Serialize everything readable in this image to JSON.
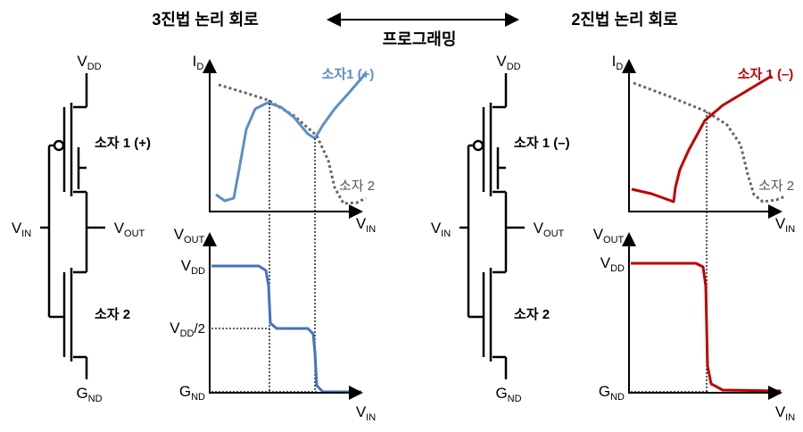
{
  "header": {
    "left_title": "3진법 논리 회로",
    "center": "프로그래밍",
    "right_title": "2진법 논리 회로"
  },
  "panels": [
    {
      "circuit": {
        "vdd": {
          "main": "V",
          "sub": "DD"
        },
        "gnd": {
          "main": "G",
          "sub": "ND"
        },
        "vin": {
          "main": "V",
          "sub": "IN"
        },
        "vout": {
          "main": "V",
          "sub": "OUT"
        },
        "device1": "소자 1 (+)",
        "device2": "소자 2"
      },
      "id_plot": {
        "y_label": {
          "main": "I",
          "sub": "D"
        },
        "x_label": {
          "main": "V",
          "sub": "IN"
        },
        "curve1_label": "소자1 (+)",
        "curve2_label": "소자 2"
      },
      "vtc_plot": {
        "y_label": {
          "main": "V",
          "sub": "OUT"
        },
        "x_label": {
          "main": "V",
          "sub": "IN"
        },
        "levels": [
          {
            "main": "V",
            "sub": "DD"
          },
          {
            "main": "V",
            "sub": "DD",
            "suffix": "/2"
          },
          {
            "main": "G",
            "sub": "ND"
          }
        ]
      }
    },
    {
      "circuit": {
        "vdd": {
          "main": "V",
          "sub": "DD"
        },
        "gnd": {
          "main": "G",
          "sub": "ND"
        },
        "vin": {
          "main": "V",
          "sub": "IN"
        },
        "vout": {
          "main": "V",
          "sub": "OUT"
        },
        "device1": "소자 1 (–)",
        "device2": "소자 2"
      },
      "id_plot": {
        "y_label": {
          "main": "I",
          "sub": "D"
        },
        "x_label": {
          "main": "V",
          "sub": "IN"
        },
        "curve1_label": "소자 1 (–)",
        "curve2_label": "소자 2"
      },
      "vtc_plot": {
        "y_label": {
          "main": "V",
          "sub": "OUT"
        },
        "x_label": {
          "main": "V",
          "sub": "IN"
        },
        "levels": [
          {
            "main": "V",
            "sub": "DD"
          },
          {
            "main": "G",
            "sub": "ND"
          }
        ]
      }
    }
  ]
}
